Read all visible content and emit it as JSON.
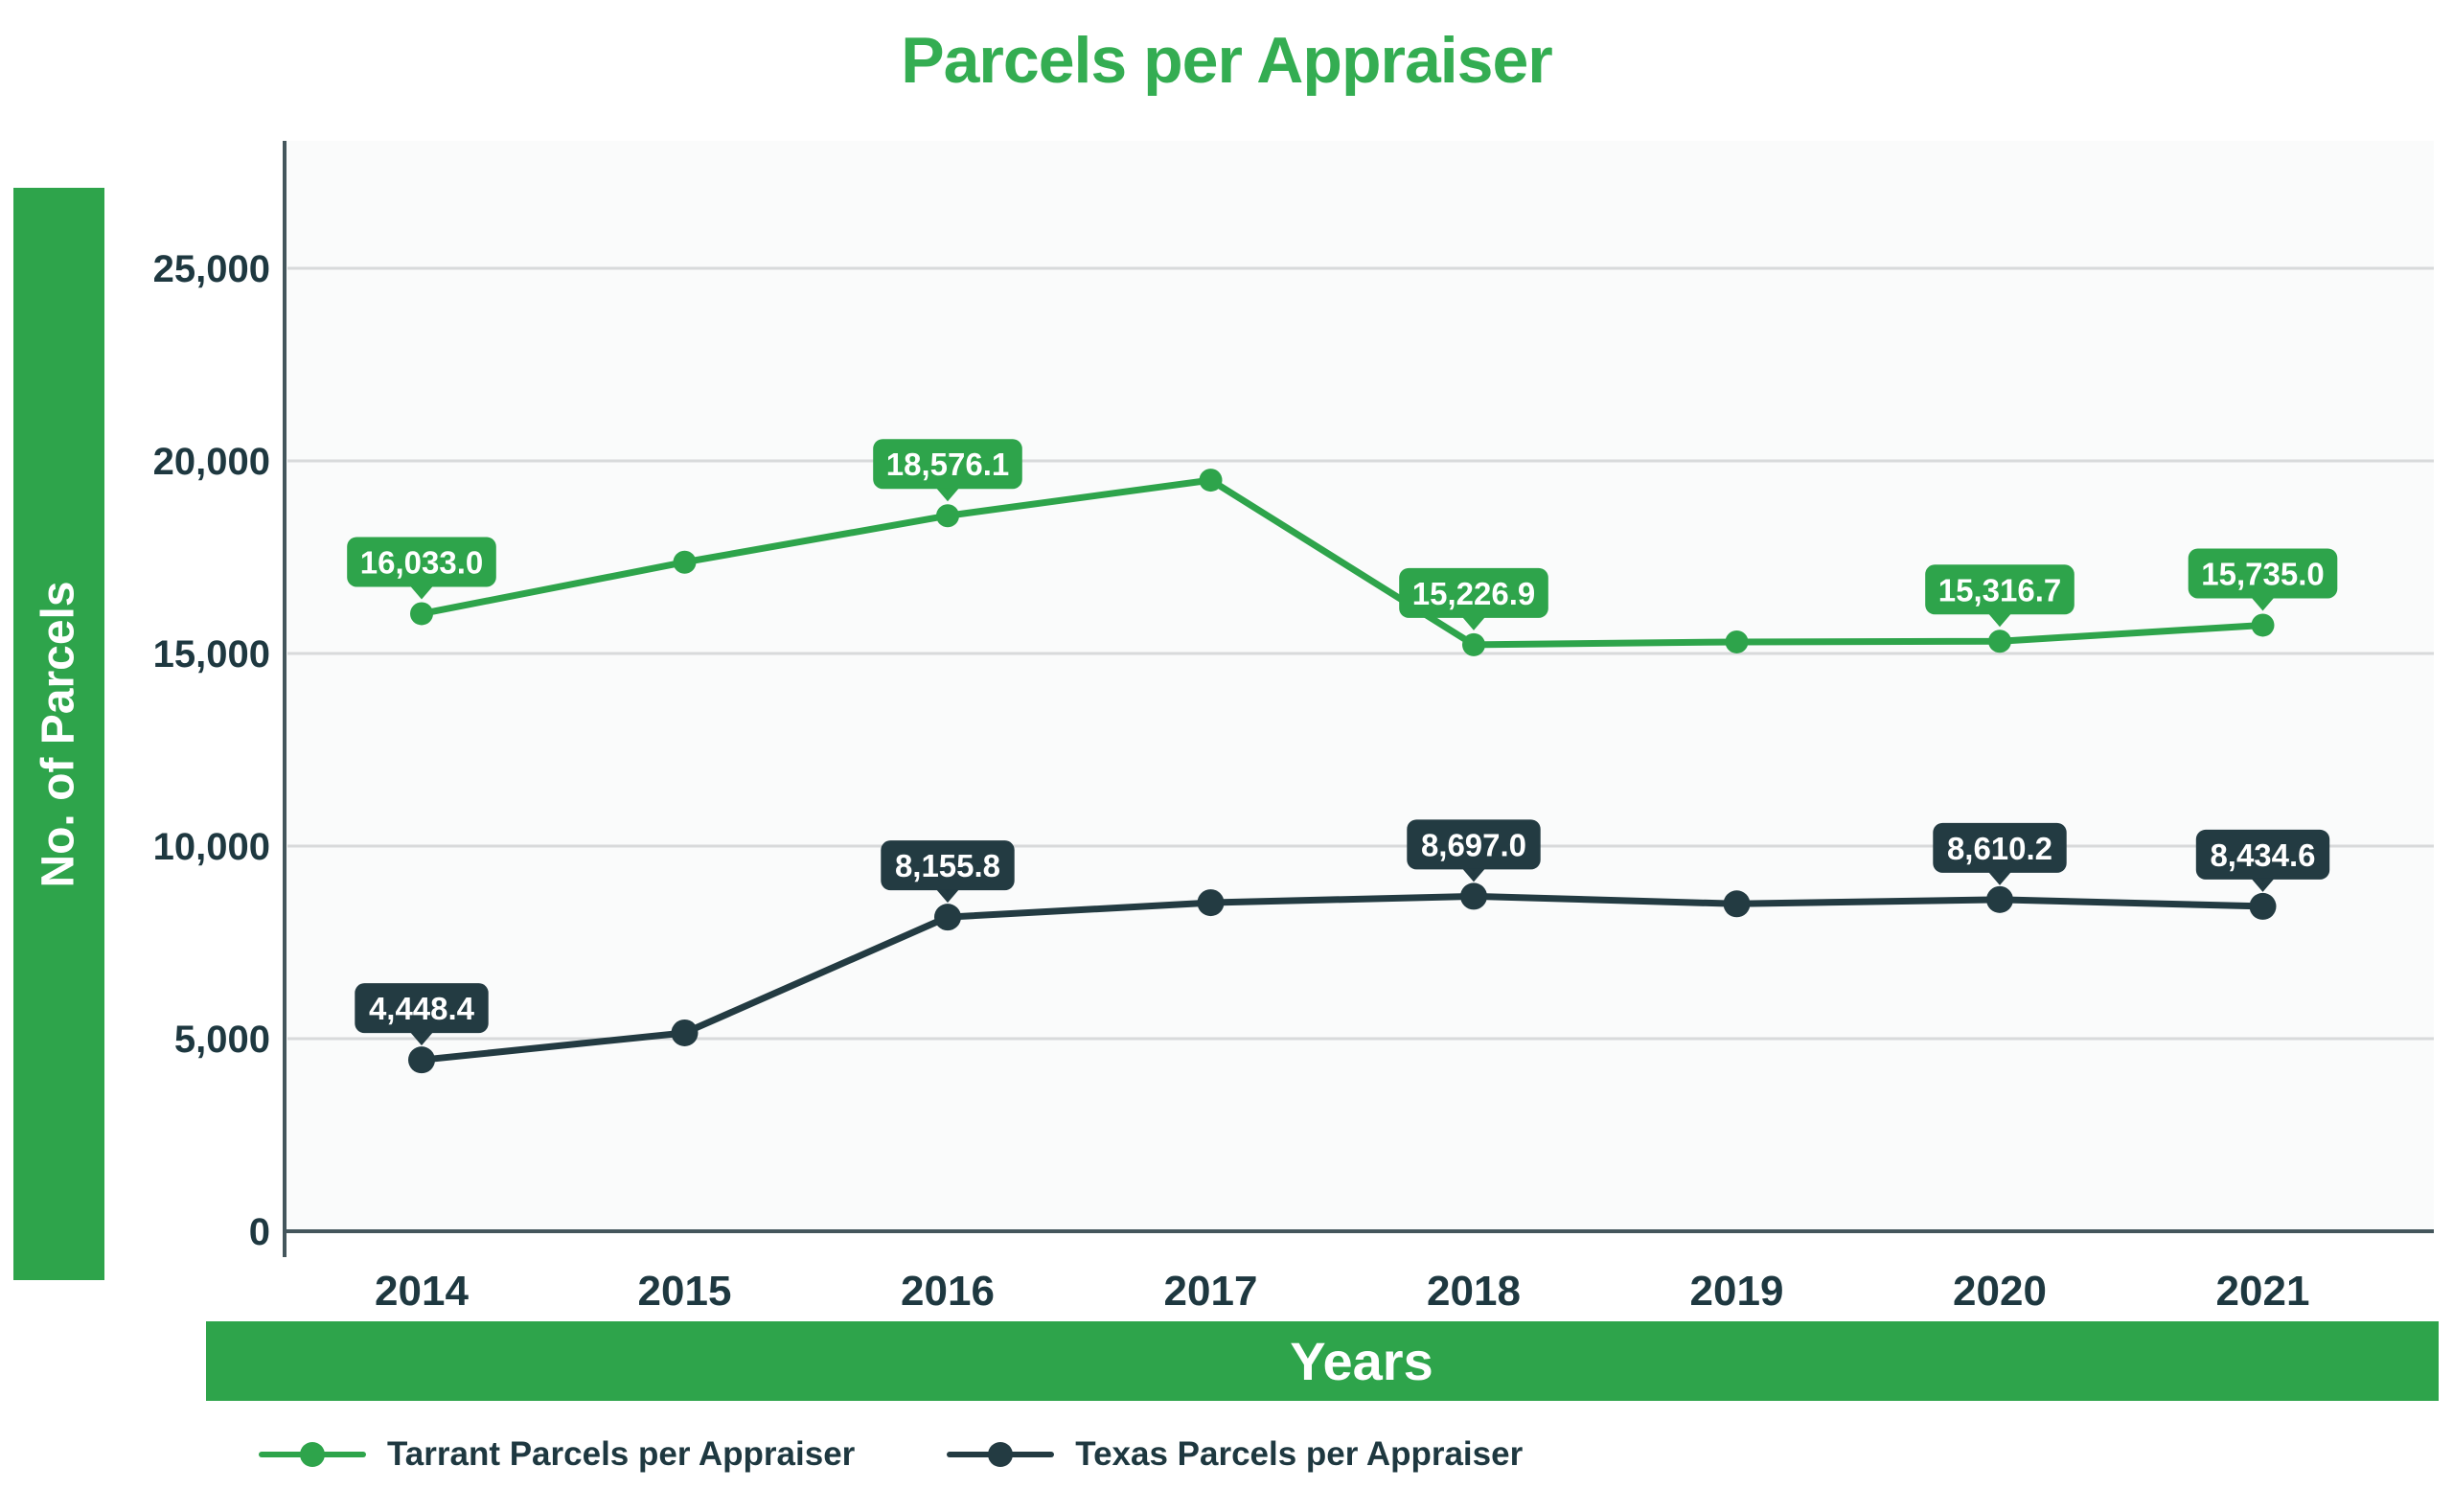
{
  "title": "Parcels per Appraiser",
  "y_axis": {
    "label": "No. of Parcels"
  },
  "x_axis": {
    "label": "Years"
  },
  "colors": {
    "green": "#2ea44b",
    "title_green": "#34ad52",
    "dark": "#233b42",
    "tick_text": "#1e3840",
    "gridline": "#d8dadb",
    "axis_line": "#44565c",
    "plot_bg": "#fafbfb",
    "label_text": "#ffffff"
  },
  "chart_data": {
    "type": "line",
    "title": "Parcels per Appraiser",
    "xlabel": "Years",
    "ylabel": "No. of Parcels",
    "categories": [
      "2014",
      "2015",
      "2016",
      "2017",
      "2018",
      "2019",
      "2020",
      "2021"
    ],
    "yticks": [
      {
        "value": 0,
        "label": "0"
      },
      {
        "value": 5000,
        "label": "5,000"
      },
      {
        "value": 10000,
        "label": "10,000"
      },
      {
        "value": 15000,
        "label": "15,000"
      },
      {
        "value": 20000,
        "label": "20,000"
      },
      {
        "value": 25000,
        "label": "25,000"
      }
    ],
    "ylim": [
      0,
      28300
    ],
    "grid": "horizontal",
    "legend_position": "bottom",
    "series": [
      {
        "name": "Tarrant Parcels per Appraiser",
        "color": "#2ea44b",
        "values": [
          16033.0,
          17370,
          18576.1,
          19500,
          15226.9,
          15300,
          15316.7,
          15735.0
        ],
        "data_labels": {
          "0": "16,033.0",
          "2": "18,576.1",
          "4": "15,226.9",
          "6": "15,316.7",
          "7": "15,735.0"
        }
      },
      {
        "name": "Texas Parcels per Appraiser",
        "color": "#233b42",
        "values": [
          4448.4,
          5150,
          8155.8,
          8530,
          8697.0,
          8500,
          8610.2,
          8434.6
        ],
        "data_labels": {
          "0": "4,448.4",
          "2": "8,155.8",
          "4": "8,697.0",
          "6": "8,610.2",
          "7": "8,434.6"
        }
      }
    ]
  }
}
